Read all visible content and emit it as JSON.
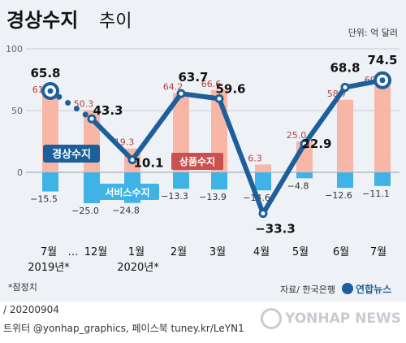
{
  "title_bold": "경상수지",
  "title_light": "추이",
  "unit": "단위: 억 달러",
  "footnote": "*잠정치",
  "source": "자료/ 한국은행",
  "agency_logo": "연합뉴스",
  "footer": {
    "date": "/ 20200904",
    "sns": "트위터 @yonhap_graphics, 페이스북 tuney.kr/LeYN1",
    "watermark": "YONHAP NEWS"
  },
  "colors": {
    "goods": "#f7b6a6",
    "services": "#3fb3e6",
    "current": "#1d5f9b",
    "background": "#eef1f5"
  },
  "chart_data": {
    "type": "bar",
    "x_ticks": [
      "7월",
      "…",
      "12월",
      "1월",
      "2월",
      "3월",
      "4월",
      "5월",
      "6월",
      "7월"
    ],
    "year_labels": [
      "2019년*",
      "2020년*"
    ],
    "categories": [
      "7월",
      "12월",
      "1월",
      "2월",
      "3월",
      "4월",
      "5월",
      "6월",
      "7월"
    ],
    "yticks": [
      0,
      50,
      100
    ],
    "ylim": [
      -40,
      100
    ],
    "series": [
      {
        "name": "상품수지",
        "type": "bar",
        "values": [
          61.8,
          50.3,
          19.3,
          64.2,
          66.6,
          6.3,
          25.0,
          58.7,
          69.7
        ],
        "labels": [
          "61.8",
          "50.3",
          "19.3",
          "64.2",
          "66.6",
          "6.3",
          "25.0",
          "58.7",
          "69.7"
        ]
      },
      {
        "name": "서비스수지",
        "type": "bar",
        "values": [
          -15.5,
          -25.0,
          -24.8,
          -13.3,
          -13.9,
          -14.6,
          -4.8,
          -12.6,
          -11.1
        ],
        "labels": [
          "−15.5",
          "−25.0",
          "−24.8",
          "−13.3",
          "−13.9",
          "−14.6",
          "−4.8",
          "−12.6",
          "−11.1"
        ]
      },
      {
        "name": "경상수지",
        "type": "line",
        "values": [
          65.8,
          43.3,
          10.1,
          63.7,
          59.6,
          -33.3,
          22.9,
          68.8,
          74.5
        ],
        "labels": [
          "65.8",
          "43.3",
          "10.1",
          "63.7",
          "59.6",
          "−33.3",
          "22.9",
          "68.8",
          "74.5"
        ]
      }
    ]
  }
}
